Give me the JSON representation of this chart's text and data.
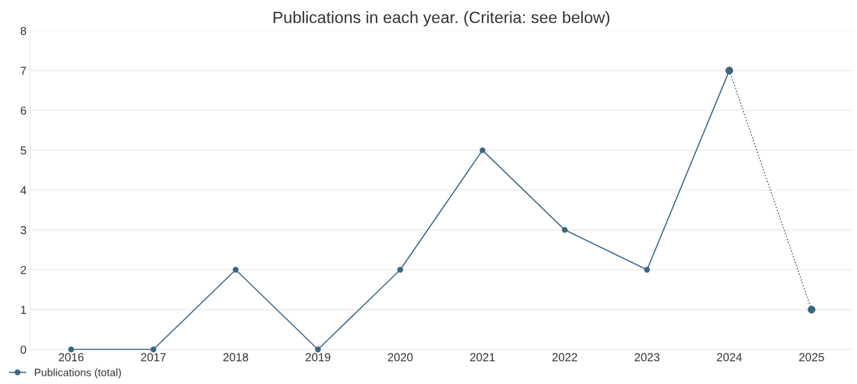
{
  "chart_data": {
    "type": "line",
    "title": "Publications in each year. (Criteria: see below)",
    "categories": [
      "2016",
      "2017",
      "2018",
      "2019",
      "2020",
      "2021",
      "2022",
      "2023",
      "2024",
      "2025"
    ],
    "series": [
      {
        "name": "Publications (total)",
        "color": "#3d6680",
        "values": [
          0,
          0,
          2,
          0,
          2,
          5,
          3,
          2,
          7,
          null
        ],
        "marker": "circle",
        "line_style": "solid"
      },
      {
        "color": "#3d6680",
        "values": [
          null,
          null,
          null,
          null,
          null,
          null,
          null,
          null,
          7,
          1
        ],
        "marker": "circle",
        "line_style": "dotted"
      }
    ],
    "ylim": [
      0,
      8
    ],
    "yticks": [
      0,
      1,
      2,
      3,
      4,
      5,
      6,
      7,
      8
    ],
    "grid": "y",
    "legend": "bottom left"
  }
}
